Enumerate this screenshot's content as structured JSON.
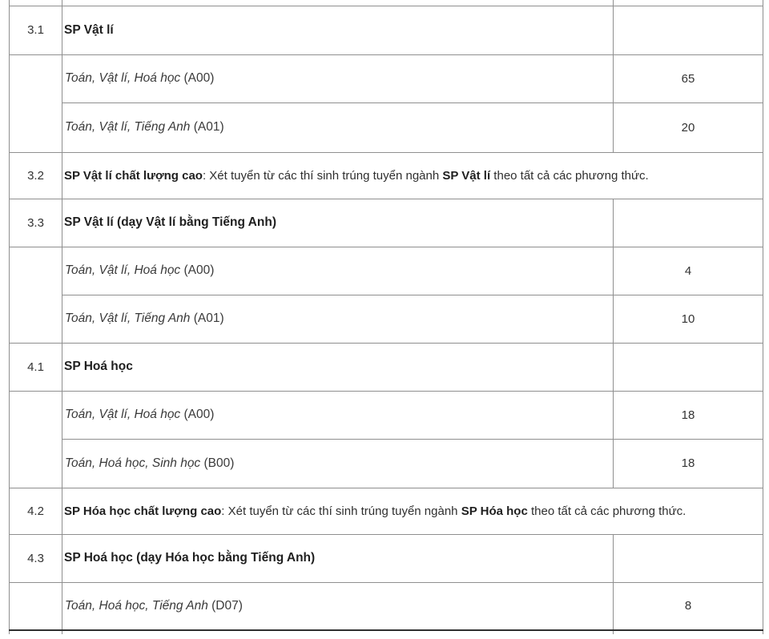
{
  "colors": {
    "border": "#8f8f8f",
    "thick_divider": "#2f2f2f",
    "text": "#2f2f2f"
  },
  "rows": {
    "r31": {
      "num": "3.1",
      "name": "SP Vật lí"
    },
    "r31a": {
      "subjects": "Toán, Vật lí, Hoá học",
      "code": "(A00)",
      "quota": "65"
    },
    "r31b": {
      "subjects": "Toán, Vật lí, Tiếng Anh",
      "code": "(A01)",
      "quota": "20"
    },
    "r32": {
      "num": "3.2",
      "bold1": "SP Vật lí chất lượng cao",
      "text1": ": Xét tuyển từ các thí sinh trúng tuyển ngành ",
      "bold2": "SP Vật lí",
      "text2": " theo tất cả các phương thức."
    },
    "r33": {
      "num": "3.3",
      "name": "SP Vật lí (dạy Vật lí bằng Tiếng Anh)"
    },
    "r33a": {
      "subjects": "Toán, Vật lí, Hoá học",
      "code": "(A00)",
      "quota": "4"
    },
    "r33b": {
      "subjects": "Toán, Vật lí, Tiếng Anh",
      "code": "(A01)",
      "quota": "10"
    },
    "r41": {
      "num": "4.1",
      "name": "SP Hoá học"
    },
    "r41a": {
      "subjects": "Toán, Vật lí, Hoá học",
      "code": "(A00)",
      "quota": "18"
    },
    "r41b": {
      "subjects": "Toán, Hoá học, Sinh học",
      "code": "(B00)",
      "quota": "18"
    },
    "r42": {
      "num": "4.2",
      "bold1": "SP Hóa học chất lượng cao",
      "text1": ": Xét tuyển từ các thí sinh trúng tuyển ngành ",
      "bold2": "SP Hóa học",
      "text2": " theo tất cả các phương thức."
    },
    "r43": {
      "num": "4.3",
      "name": "SP Hoá học (dạy Hóa học bằng Tiếng Anh)"
    },
    "r43a": {
      "subjects": "Toán, Hoá học, Tiếng Anh",
      "code": "(D07)",
      "quota": "8"
    }
  }
}
